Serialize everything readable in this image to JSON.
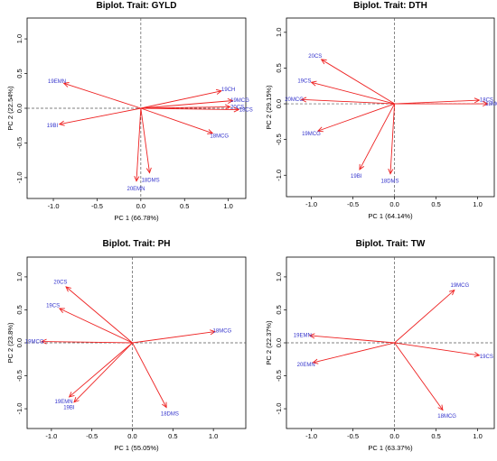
{
  "colors": {
    "arrow": "#ee2222",
    "vector_label": "#3333cc",
    "axis": "#000000",
    "reference_line": "#555555"
  },
  "chart_data": [
    {
      "type": "scatter",
      "title": "Biplot. Trait: GYLD",
      "xlabel": "PC 1 (66.78%)",
      "ylabel": "PC 2 (22.54%)",
      "xlim": [
        -1.3,
        1.2
      ],
      "ylim": [
        -1.3,
        1.3
      ],
      "xticks": [
        "-1.0",
        "-0.5",
        "0.0",
        "0.5",
        "1.0"
      ],
      "yticks": [
        "-1.0",
        "-0.5",
        "0.0",
        "0.5",
        "1.0"
      ],
      "reference_lines": "dashed at x=0 and y=0",
      "vectors": [
        {
          "label": "19EMN",
          "x": -0.88,
          "y": 0.36
        },
        {
          "label": "19BI",
          "x": -0.93,
          "y": -0.23
        },
        {
          "label": "19CH",
          "x": 0.92,
          "y": 0.25
        },
        {
          "label": "19MCG",
          "x": 1.05,
          "y": 0.11
        },
        {
          "label": "20CS",
          "x": 1.02,
          "y": 0.02
        },
        {
          "label": "18CS",
          "x": 1.12,
          "y": -0.02
        },
        {
          "label": "18MCG",
          "x": 0.82,
          "y": -0.36
        },
        {
          "label": "18DMS",
          "x": 0.1,
          "y": -0.93
        },
        {
          "label": "20EMN",
          "x": -0.05,
          "y": -1.05
        }
      ]
    },
    {
      "type": "scatter",
      "title": "Biplot. Trait: DTH",
      "xlabel": "PC 1 (64.14%)",
      "ylabel": "PC 2 (29.15%)",
      "xlim": [
        -1.3,
        1.2
      ],
      "ylim": [
        -1.3,
        1.2
      ],
      "xticks": [
        "-1.0",
        "-0.5",
        "0.0",
        "0.5",
        "1.0"
      ],
      "yticks": [
        "-1.0",
        "-0.5",
        "0.0",
        "0.5",
        "1.0"
      ],
      "reference_lines": "dashed at x=0 and y=0",
      "vectors": [
        {
          "label": "20CS",
          "x": -0.88,
          "y": 0.62
        },
        {
          "label": "19CS",
          "x": -1.0,
          "y": 0.3
        },
        {
          "label": "20MCG",
          "x": -1.12,
          "y": 0.06
        },
        {
          "label": "19MCG",
          "x": -0.92,
          "y": -0.38
        },
        {
          "label": "19BI",
          "x": -0.42,
          "y": -0.92
        },
        {
          "label": "18DMS",
          "x": -0.05,
          "y": -0.98
        },
        {
          "label": "18CS",
          "x": 1.02,
          "y": 0.05
        },
        {
          "label": "18MCG",
          "x": 1.12,
          "y": 0.0
        }
      ]
    },
    {
      "type": "scatter",
      "title": "Biplot. Trait: PH",
      "xlabel": "PC 1 (55.05%)",
      "ylabel": "PC 2 (23.8%)",
      "xlim": [
        -1.3,
        1.4
      ],
      "ylim": [
        -1.3,
        1.3
      ],
      "xticks": [
        "-1.0",
        "-0.5",
        "0.0",
        "0.5",
        "1.0"
      ],
      "yticks": [
        "-1.0",
        "-0.5",
        "0.0",
        "0.5",
        "1.0"
      ],
      "reference_lines": "dashed at x=0 and y=0",
      "vectors": [
        {
          "label": "20CS",
          "x": -0.82,
          "y": 0.85
        },
        {
          "label": "19CS",
          "x": -0.9,
          "y": 0.52
        },
        {
          "label": "19MCG",
          "x": -1.12,
          "y": 0.02
        },
        {
          "label": "19EMN",
          "x": -0.78,
          "y": -0.82
        },
        {
          "label": "19BI",
          "x": -0.72,
          "y": -0.9
        },
        {
          "label": "18DMS",
          "x": 0.42,
          "y": -0.98
        },
        {
          "label": "18MCG",
          "x": 1.02,
          "y": 0.17
        }
      ]
    },
    {
      "type": "scatter",
      "title": "Biplot. Trait: TW",
      "xlabel": "PC 1 (63.37%)",
      "ylabel": "PC 2 (22.37%)",
      "xlim": [
        -1.3,
        1.2
      ],
      "ylim": [
        -1.3,
        1.3
      ],
      "xticks": [
        "-1.0",
        "-0.5",
        "0.0",
        "0.5",
        "1.0"
      ],
      "yticks": [
        "-1.0",
        "-0.5",
        "0.0",
        "0.5",
        "1.0"
      ],
      "reference_lines": "dashed at x=0 and y=0",
      "vectors": [
        {
          "label": "19EMN",
          "x": -1.02,
          "y": 0.11
        },
        {
          "label": "20EMN",
          "x": -0.98,
          "y": -0.3
        },
        {
          "label": "19MCG",
          "x": 0.72,
          "y": 0.8
        },
        {
          "label": "19CS",
          "x": 1.02,
          "y": -0.19
        },
        {
          "label": "18MCG",
          "x": 0.58,
          "y": -1.02
        }
      ]
    }
  ]
}
